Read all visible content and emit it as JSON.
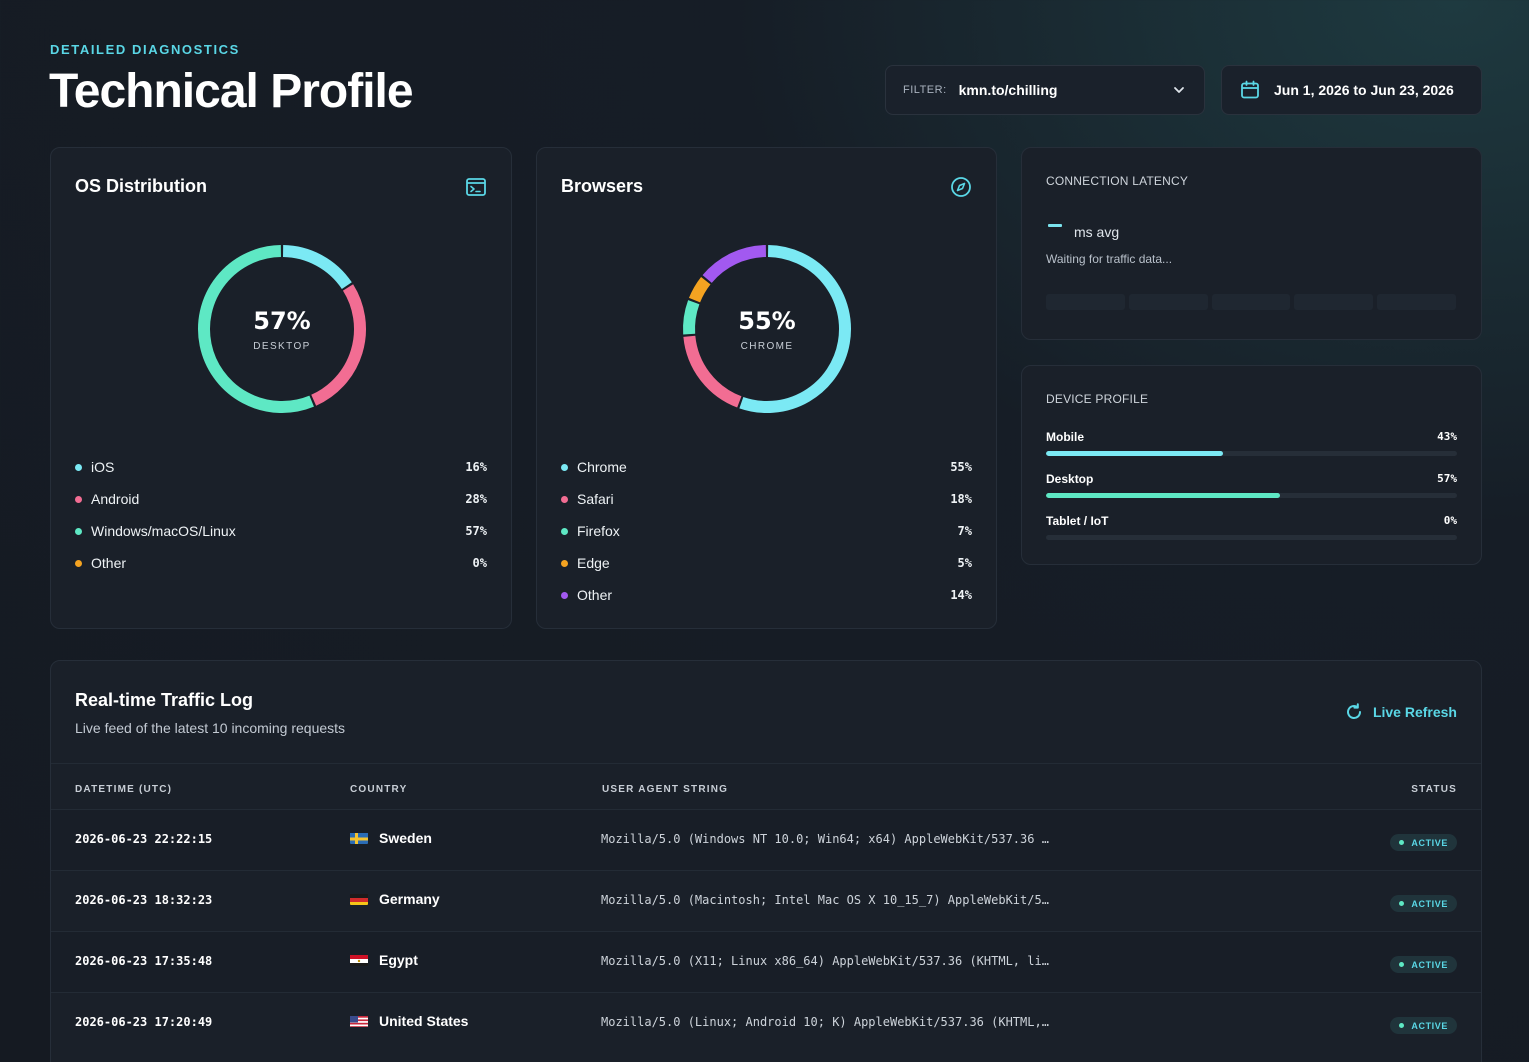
{
  "header": {
    "eyebrow": "DETAILED DIAGNOSTICS",
    "title": "Technical Profile",
    "filter_label": "FILTER:",
    "filter_value": "kmn.to/chilling",
    "date_range": "Jun 1, 2026 to Jun 23, 2026"
  },
  "os": {
    "title": "OS Distribution",
    "center_value": "57%",
    "center_label": "DESKTOP",
    "items": [
      {
        "name": "iOS",
        "value": "16%",
        "color": "#7be9f4"
      },
      {
        "name": "Android",
        "value": "28%",
        "color": "#f26d93"
      },
      {
        "name": "Windows/macOS/Linux",
        "value": "57%",
        "color": "#5ee8c4"
      },
      {
        "name": "Other",
        "value": "0%",
        "color": "#f4a321"
      }
    ]
  },
  "browsers": {
    "title": "Browsers",
    "center_value": "55%",
    "center_label": "CHROME",
    "items": [
      {
        "name": "Chrome",
        "value": "55%",
        "color": "#7be9f4"
      },
      {
        "name": "Safari",
        "value": "18%",
        "color": "#f26d93"
      },
      {
        "name": "Firefox",
        "value": "7%",
        "color": "#5ee8c4"
      },
      {
        "name": "Edge",
        "value": "5%",
        "color": "#f4a321"
      },
      {
        "name": "Other",
        "value": "14%",
        "color": "#a259f0"
      }
    ]
  },
  "latency": {
    "title": "CONNECTION LATENCY",
    "unit": "ms avg",
    "waiting": "Waiting for traffic data..."
  },
  "device": {
    "title": "DEVICE PROFILE",
    "rows": [
      {
        "name": "Mobile",
        "value": "43%",
        "fraction": 0.43,
        "color": "#7be9f4"
      },
      {
        "name": "Desktop",
        "value": "57%",
        "fraction": 0.57,
        "color": "#5ee8c4"
      },
      {
        "name": "Tablet / IoT",
        "value": "0%",
        "fraction": 0,
        "color": "#a259f0"
      }
    ]
  },
  "log": {
    "title": "Real-time Traffic Log",
    "subtitle": "Live feed of the latest 10 incoming requests",
    "refresh_label": "Live Refresh",
    "columns": [
      "DATETIME (UTC)",
      "COUNTRY",
      "USER AGENT STRING",
      "STATUS"
    ],
    "rows": [
      {
        "datetime": "2026-06-23 22:22:15",
        "country": "Sweden",
        "flag": "sweden",
        "ua": "Mozilla/5.0 (Windows NT 10.0; Win64; x64) AppleWebKit/537.36 …",
        "status": "ACTIVE"
      },
      {
        "datetime": "2026-06-23 18:32:23",
        "country": "Germany",
        "flag": "germany",
        "ua": "Mozilla/5.0 (Macintosh; Intel Mac OS X 10_15_7) AppleWebKit/5…",
        "status": "ACTIVE"
      },
      {
        "datetime": "2026-06-23 17:35:48",
        "country": "Egypt",
        "flag": "egypt",
        "ua": "Mozilla/5.0 (X11; Linux x86_64) AppleWebKit/537.36 (KHTML, li…",
        "status": "ACTIVE"
      },
      {
        "datetime": "2026-06-23 17:20:49",
        "country": "United States",
        "flag": "usa",
        "ua": "Mozilla/5.0 (Linux; Android 10; K) AppleWebKit/537.36 (KHTML,…",
        "status": "ACTIVE"
      }
    ]
  }
}
